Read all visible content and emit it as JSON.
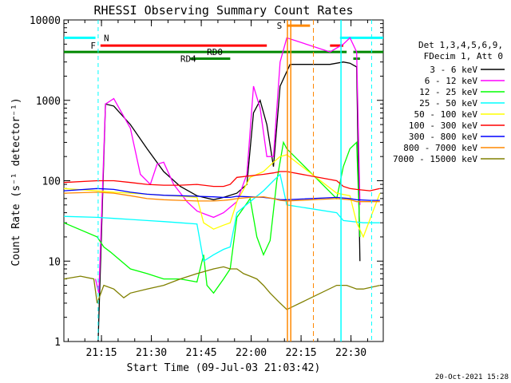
{
  "chart_data": {
    "type": "line",
    "title": "RHESSI Observing Summary Count Rates",
    "xlabel": "Start Time (09-Jul-03 21:03:42)",
    "ylabel": "Count Rate (s⁻¹ detector⁻¹)",
    "yscale": "log",
    "ylim": [
      1,
      10000
    ],
    "xlim_minutes": [
      0,
      39.7
    ],
    "x_ticks": [
      {
        "t": 11.3,
        "label": "21:15"
      },
      {
        "t": 26.3,
        "label": "21:30"
      },
      {
        "t": 41.3,
        "label": "21:45"
      },
      {
        "t": 56.3,
        "label": "22:00"
      },
      {
        "t": 71.3,
        "label": "22:15"
      },
      {
        "t": 86.3,
        "label": "22:30"
      }
    ],
    "y_ticks": [
      {
        "v": 1,
        "label": "1"
      },
      {
        "v": 10,
        "label": "10"
      },
      {
        "v": 100,
        "label": "100"
      },
      {
        "v": 1000,
        "label": "1000"
      },
      {
        "v": 10000,
        "label": "10000"
      }
    ],
    "legend_header": [
      "Det 1,3,4,5,6,9,",
      "FDecim 1, Att 0"
    ],
    "series": [
      {
        "name": "3 - 6 keV",
        "color": "#000000",
        "points": [
          [
            10.3,
            1
          ],
          [
            12.5,
            900
          ],
          [
            15,
            850
          ],
          [
            20,
            500
          ],
          [
            25,
            250
          ],
          [
            30,
            130
          ],
          [
            35,
            85
          ],
          [
            40,
            65
          ],
          [
            45,
            58
          ],
          [
            48,
            62
          ],
          [
            52,
            70
          ],
          [
            55,
            90
          ],
          [
            57,
            700
          ],
          [
            59,
            1000
          ],
          [
            61,
            500
          ],
          [
            63,
            150
          ],
          [
            65,
            1500
          ],
          [
            68,
            2800
          ],
          [
            80,
            2800
          ],
          [
            84,
            3000
          ],
          [
            86,
            2900
          ],
          [
            88,
            2600
          ],
          [
            89,
            10
          ]
        ]
      },
      {
        "name": "6 - 12 keV",
        "color": "#ff00ff",
        "points": [
          [
            9.5,
            6
          ],
          [
            10.5,
            4
          ],
          [
            12.5,
            900
          ],
          [
            15,
            1050
          ],
          [
            20,
            450
          ],
          [
            23,
            120
          ],
          [
            26,
            90
          ],
          [
            28,
            160
          ],
          [
            30,
            170
          ],
          [
            33,
            90
          ],
          [
            37,
            55
          ],
          [
            40,
            42
          ],
          [
            45,
            35
          ],
          [
            48,
            40
          ],
          [
            52,
            55
          ],
          [
            55,
            120
          ],
          [
            57,
            1500
          ],
          [
            59,
            800
          ],
          [
            61,
            200
          ],
          [
            63,
            200
          ],
          [
            65,
            3000
          ],
          [
            67,
            6000
          ],
          [
            80,
            4000
          ],
          [
            84,
            5000
          ],
          [
            86,
            6000
          ],
          [
            88,
            4000
          ],
          [
            89,
            50
          ]
        ]
      },
      {
        "name": "12 - 25 keV",
        "color": "#00ff00",
        "points": [
          [
            0,
            30
          ],
          [
            10,
            20
          ],
          [
            12,
            15
          ],
          [
            14,
            13
          ],
          [
            20,
            8
          ],
          [
            25,
            7
          ],
          [
            30,
            6
          ],
          [
            35,
            6
          ],
          [
            40,
            5.5
          ],
          [
            42,
            12
          ],
          [
            43,
            5
          ],
          [
            45,
            4
          ],
          [
            48,
            6
          ],
          [
            50,
            8
          ],
          [
            52,
            35
          ],
          [
            56,
            60
          ],
          [
            58,
            20
          ],
          [
            60,
            12
          ],
          [
            62,
            18
          ],
          [
            64,
            100
          ],
          [
            66,
            300
          ],
          [
            67,
            250
          ],
          [
            82,
            60
          ],
          [
            84,
            150
          ],
          [
            86,
            250
          ],
          [
            88,
            300
          ],
          [
            89,
            20
          ]
        ]
      },
      {
        "name": "25 - 50 keV",
        "color": "#00ffff",
        "points": [
          [
            0,
            36
          ],
          [
            10,
            35
          ],
          [
            15,
            34
          ],
          [
            20,
            33
          ],
          [
            25,
            32
          ],
          [
            30,
            31
          ],
          [
            35,
            30
          ],
          [
            40,
            29
          ],
          [
            42,
            10
          ],
          [
            45,
            12
          ],
          [
            48,
            14
          ],
          [
            50,
            15
          ],
          [
            52,
            40
          ],
          [
            56,
            55
          ],
          [
            60,
            75
          ],
          [
            63,
            100
          ],
          [
            65,
            120
          ],
          [
            67,
            50
          ],
          [
            82,
            40
          ],
          [
            84,
            32
          ],
          [
            90,
            30
          ],
          [
            95,
            30
          ]
        ]
      },
      {
        "name": "50 - 100 keV",
        "color": "#ffff00",
        "points": [
          [
            0,
            80
          ],
          [
            10,
            75
          ],
          [
            15,
            72
          ],
          [
            20,
            70
          ],
          [
            25,
            68
          ],
          [
            30,
            66
          ],
          [
            35,
            64
          ],
          [
            40,
            62
          ],
          [
            42,
            30
          ],
          [
            45,
            25
          ],
          [
            48,
            28
          ],
          [
            50,
            30
          ],
          [
            52,
            55
          ],
          [
            56,
            110
          ],
          [
            60,
            130
          ],
          [
            63,
            170
          ],
          [
            65,
            200
          ],
          [
            67,
            210
          ],
          [
            82,
            70
          ],
          [
            86,
            65
          ],
          [
            88,
            30
          ],
          [
            90,
            20
          ],
          [
            95,
            70
          ]
        ]
      },
      {
        "name": "100 - 300 keV",
        "color": "#ff0000",
        "points": [
          [
            0,
            95
          ],
          [
            10,
            100
          ],
          [
            15,
            100
          ],
          [
            20,
            95
          ],
          [
            25,
            90
          ],
          [
            30,
            88
          ],
          [
            35,
            88
          ],
          [
            40,
            90
          ],
          [
            45,
            85
          ],
          [
            48,
            85
          ],
          [
            50,
            90
          ],
          [
            52,
            110
          ],
          [
            56,
            115
          ],
          [
            60,
            120
          ],
          [
            63,
            125
          ],
          [
            65,
            130
          ],
          [
            67,
            130
          ],
          [
            82,
            100
          ],
          [
            84,
            85
          ],
          [
            86,
            80
          ],
          [
            88,
            78
          ],
          [
            92,
            75
          ],
          [
            95,
            80
          ]
        ]
      },
      {
        "name": "300 - 800 keV",
        "color": "#0000ff",
        "points": [
          [
            0,
            75
          ],
          [
            10,
            80
          ],
          [
            15,
            78
          ],
          [
            20,
            72
          ],
          [
            25,
            68
          ],
          [
            30,
            66
          ],
          [
            35,
            65
          ],
          [
            40,
            64
          ],
          [
            45,
            63
          ],
          [
            48,
            62
          ],
          [
            50,
            62
          ],
          [
            52,
            64
          ],
          [
            56,
            63
          ],
          [
            60,
            62
          ],
          [
            63,
            60
          ],
          [
            65,
            58
          ],
          [
            67,
            58
          ],
          [
            82,
            62
          ],
          [
            86,
            60
          ],
          [
            88,
            58
          ],
          [
            92,
            57
          ],
          [
            95,
            57
          ]
        ]
      },
      {
        "name": "800 - 7000 keV",
        "color": "#ff8800",
        "points": [
          [
            0,
            70
          ],
          [
            10,
            72
          ],
          [
            15,
            70
          ],
          [
            20,
            65
          ],
          [
            25,
            60
          ],
          [
            30,
            58
          ],
          [
            35,
            57
          ],
          [
            40,
            56
          ],
          [
            45,
            56
          ],
          [
            48,
            57
          ],
          [
            50,
            58
          ],
          [
            52,
            60
          ],
          [
            56,
            62
          ],
          [
            60,
            63
          ],
          [
            63,
            60
          ],
          [
            65,
            57
          ],
          [
            67,
            56
          ],
          [
            82,
            60
          ],
          [
            86,
            58
          ],
          [
            88,
            55
          ],
          [
            92,
            55
          ],
          [
            95,
            55
          ]
        ]
      },
      {
        "name": "7000 - 15000 keV",
        "color": "#808000",
        "points": [
          [
            0,
            6
          ],
          [
            5,
            6.5
          ],
          [
            9,
            6
          ],
          [
            10,
            3
          ],
          [
            12,
            5
          ],
          [
            15,
            4.5
          ],
          [
            18,
            3.5
          ],
          [
            20,
            4
          ],
          [
            25,
            4.5
          ],
          [
            30,
            5
          ],
          [
            35,
            6
          ],
          [
            40,
            7
          ],
          [
            45,
            8
          ],
          [
            48,
            8.5
          ],
          [
            50,
            8
          ],
          [
            52,
            8
          ],
          [
            54,
            7
          ],
          [
            56,
            6.5
          ],
          [
            58,
            6
          ],
          [
            60,
            5
          ],
          [
            62,
            4
          ],
          [
            65,
            3
          ],
          [
            67,
            2.5
          ],
          [
            82,
            5
          ],
          [
            85,
            5
          ],
          [
            88,
            4.5
          ],
          [
            90,
            4.5
          ],
          [
            95,
            5
          ]
        ]
      }
    ],
    "annotations": {
      "flag_labels": [
        "N",
        "F",
        "RD0",
        "RD4",
        "S"
      ],
      "timestamp": "20-Oct-2021 15:28"
    }
  }
}
